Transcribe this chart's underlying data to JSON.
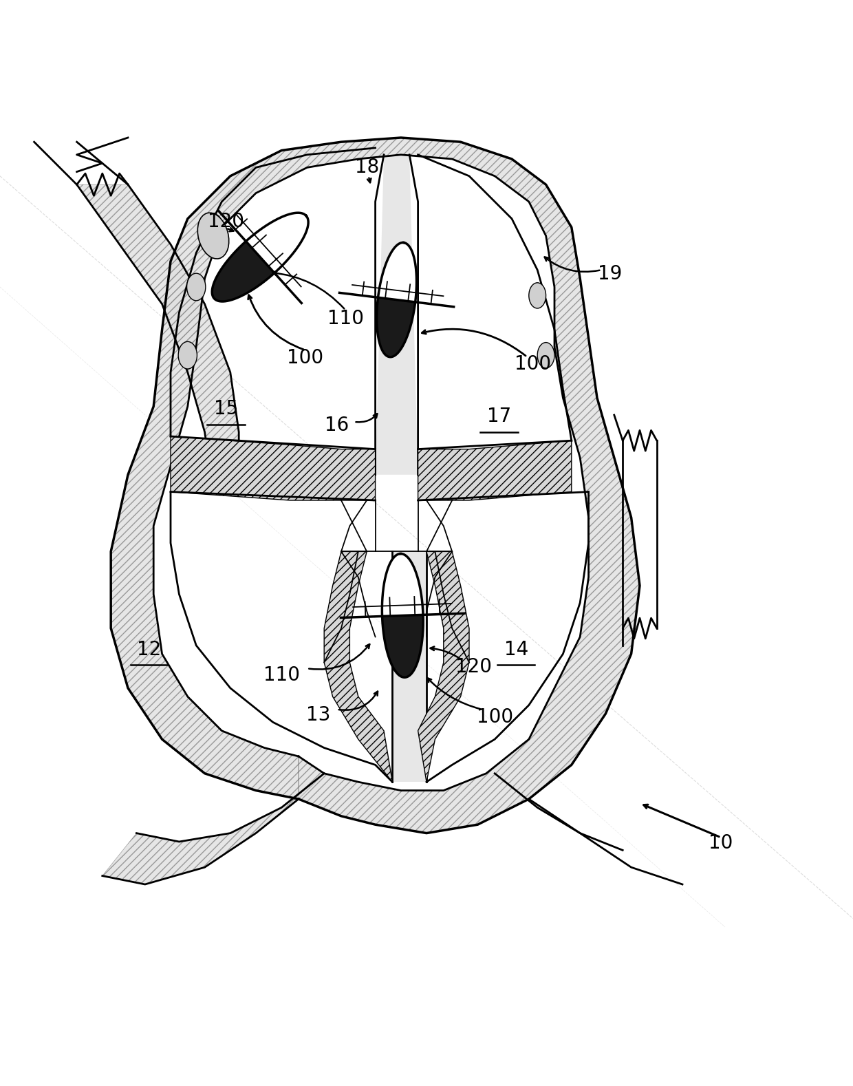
{
  "bg_color": "#ffffff",
  "line_color": "#000000",
  "fig_width": 12.4,
  "fig_height": 15.78,
  "dpi": 100
}
